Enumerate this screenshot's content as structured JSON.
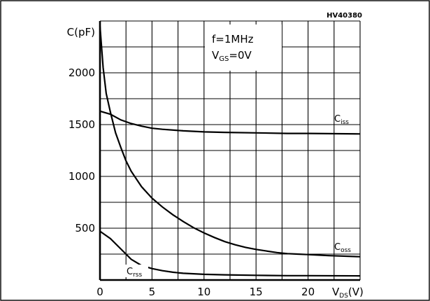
{
  "chart_data": {
    "type": "line",
    "code": "HV40380",
    "ylabel": "C(pF)",
    "xlabel": {
      "main": "V",
      "sub": "DS",
      "unit": "(V)"
    },
    "xlim": [
      0,
      25
    ],
    "ylim": [
      0,
      2500
    ],
    "x_ticks": [
      0,
      5,
      10,
      15,
      20
    ],
    "y_ticks": [
      500,
      1000,
      1500,
      2000
    ],
    "grid": true,
    "annotation": {
      "line1": "f=1MHz",
      "line2_main": "V",
      "line2_sub": "GS",
      "line2_rest": "=0V"
    },
    "series": [
      {
        "name": "Ciss",
        "label_main": "C",
        "label_sub": "iss",
        "points": [
          [
            0,
            1630
          ],
          [
            1,
            1600
          ],
          [
            2,
            1545
          ],
          [
            3,
            1510
          ],
          [
            4,
            1485
          ],
          [
            5,
            1465
          ],
          [
            6,
            1455
          ],
          [
            8,
            1440
          ],
          [
            10,
            1430
          ],
          [
            12,
            1425
          ],
          [
            15,
            1420
          ],
          [
            18,
            1415
          ],
          [
            20,
            1415
          ],
          [
            25,
            1410
          ]
        ]
      },
      {
        "name": "Coss",
        "label_main": "C",
        "label_sub": "oss",
        "points": [
          [
            0,
            2450
          ],
          [
            0.3,
            2050
          ],
          [
            0.6,
            1800
          ],
          [
            1,
            1620
          ],
          [
            1.5,
            1420
          ],
          [
            2,
            1280
          ],
          [
            2.5,
            1150
          ],
          [
            3,
            1050
          ],
          [
            4,
            900
          ],
          [
            5,
            790
          ],
          [
            6,
            705
          ],
          [
            7,
            630
          ],
          [
            8,
            565
          ],
          [
            9,
            505
          ],
          [
            10,
            455
          ],
          [
            11,
            410
          ],
          [
            12,
            370
          ],
          [
            13,
            340
          ],
          [
            14,
            315
          ],
          [
            15,
            295
          ],
          [
            16,
            280
          ],
          [
            17,
            265
          ],
          [
            18,
            255
          ],
          [
            19,
            250
          ],
          [
            20,
            245
          ],
          [
            22,
            235
          ],
          [
            25,
            225
          ]
        ]
      },
      {
        "name": "Crss",
        "label_main": "C",
        "label_sub": "rss",
        "points": [
          [
            0,
            470
          ],
          [
            1,
            400
          ],
          [
            2,
            300
          ],
          [
            3,
            200
          ],
          [
            4,
            140
          ],
          [
            5,
            110
          ],
          [
            6,
            90
          ],
          [
            7,
            75
          ],
          [
            8,
            65
          ],
          [
            10,
            55
          ],
          [
            12,
            50
          ],
          [
            15,
            45
          ],
          [
            18,
            42
          ],
          [
            20,
            42
          ],
          [
            25,
            40
          ]
        ]
      }
    ]
  }
}
